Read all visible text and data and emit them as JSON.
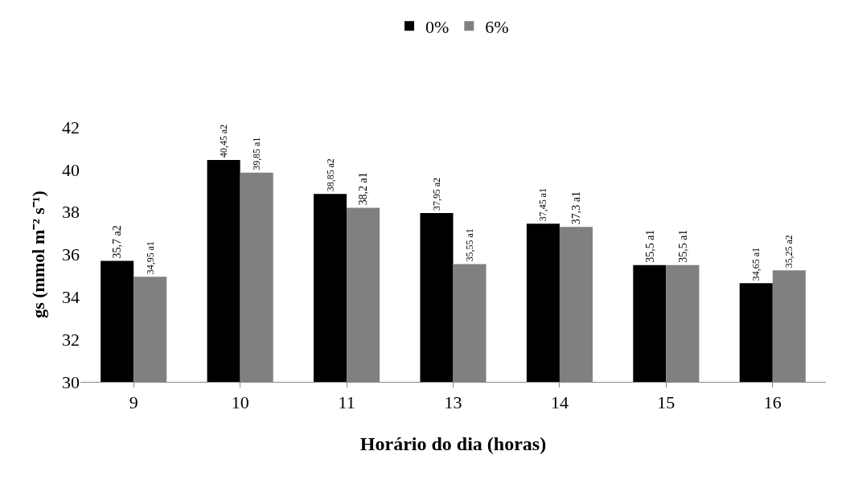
{
  "chart_data": {
    "type": "bar",
    "xlabel": "Horário do dia (horas)",
    "ylabel": "gs (mmol m⁻² s⁻¹)",
    "categories": [
      "9",
      "10",
      "11",
      "13",
      "14",
      "15",
      "16"
    ],
    "series": [
      {
        "name": "0%",
        "color": "#000000",
        "values": [
          35.7,
          40.45,
          38.85,
          37.95,
          37.45,
          35.5,
          34.65
        ],
        "value_labels": [
          "35,7 a2",
          "40,45 a2",
          "38,85 a2",
          "37,95 a2",
          "37,45 a1",
          "35,5 a1",
          "34,65 a1"
        ]
      },
      {
        "name": "6%",
        "color": "#808080",
        "values": [
          34.95,
          39.85,
          38.2,
          35.55,
          37.3,
          35.5,
          35.25
        ],
        "value_labels": [
          "34,95 a1",
          "39,85 a1",
          "38,2 a1",
          "35,55 a1",
          "37,3 a1",
          "35,5 a1",
          "35,25 a2"
        ]
      }
    ],
    "ylim": [
      30,
      42
    ],
    "yticks": [
      30,
      32,
      34,
      36,
      38,
      40,
      42
    ],
    "grid": false,
    "legend": "top"
  }
}
